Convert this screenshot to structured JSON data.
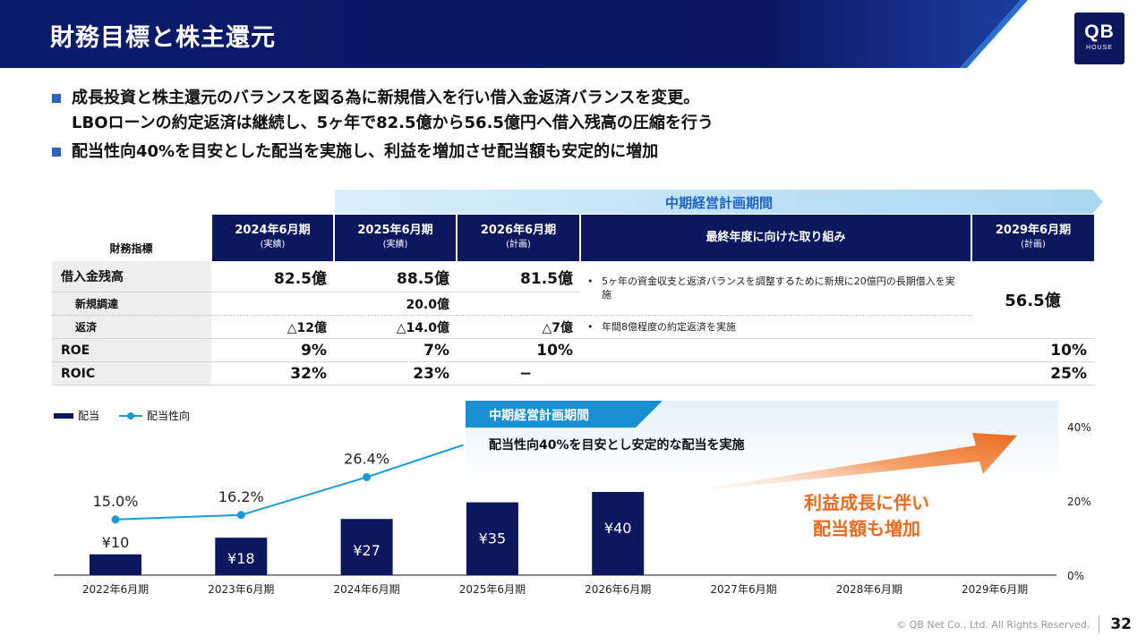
{
  "header": {
    "title": "財務目標と株主還元",
    "logo_main": "QB",
    "logo_sub": "HOUSE"
  },
  "bullets": [
    "成長投資と株主還元のバランスを図る為に新規借入を行い借入金返済バランスを変更。\nLBOローンの約定返済は継続し、5ヶ年で82.5億から56.5億円へ借入残高の圧縮を行う",
    "配当性向40%を目安とした配当を実施し、利益を増加させ配当額も安定的に増加"
  ],
  "table": {
    "period_banner": "中期経営計画期間",
    "label_header": "財務指標",
    "col_headers": [
      {
        "title": "2024年6月期",
        "sub": "(実績)"
      },
      {
        "title": "2025年6月期",
        "sub": "(実績)"
      },
      {
        "title": "2026年6月期",
        "sub": "(計画)"
      },
      {
        "title": "最終年度に向けた取り組み",
        "sub": ""
      },
      {
        "title": "2029年6月期",
        "sub": "(計画)"
      }
    ],
    "rows": {
      "borrow": {
        "name": "借入金残高",
        "v2024": "82.5億",
        "v2025": "88.5億",
        "v2026": "81.5億"
      },
      "new_borrow": {
        "name": "新規調達",
        "v2024": "",
        "v2025": "20.0億",
        "v2026": ""
      },
      "repay": {
        "name": "返済",
        "v2024": "△12億",
        "v2025": "△14.0億",
        "v2026": "△7億"
      },
      "roe": {
        "name": "ROE",
        "v2024": "9%",
        "v2025": "7%",
        "v2026": "10%",
        "v2029": "10%"
      },
      "roic": {
        "name": "ROIC",
        "v2024": "32%",
        "v2025": "23%",
        "v2026": "−",
        "v2029": "25%"
      }
    },
    "notes": [
      "5ヶ年の資金収支と返済バランスを調整するために新規に20億円の長期借入を実施",
      "年間8億程度の約定返済を実施"
    ],
    "borrow_2029": "56.5億"
  },
  "legend": {
    "bar": "配当",
    "line": "配当性向"
  },
  "mid_plan": {
    "tag": "中期経営計画期間",
    "text": "配当性向40%を目安とし安定的な配当を実施"
  },
  "growth_note": {
    "line1": "利益成長に伴い",
    "line2": "配当額も増加"
  },
  "footer": {
    "copyright": "© QB Net Co., Ltd. All Rights Reserved.",
    "page": "32"
  },
  "colors": {
    "navy": "#0b1860",
    "blue_accent": "#1e63c7",
    "line": "#1a9ad6",
    "orange": "#ec6a1e"
  },
  "chart_data": {
    "type": "bar",
    "categories": [
      "2022年6月期",
      "2023年6月期",
      "2024年6月期",
      "2025年6月期",
      "2026年6月期",
      "2027年6月期",
      "2028年6月期",
      "2029年6月期"
    ],
    "series": [
      {
        "name": "配当",
        "type": "bar",
        "values": [
          10,
          18,
          27,
          35,
          40,
          null,
          null,
          null
        ],
        "labels": [
          "¥10",
          "¥18",
          "¥27",
          "¥35",
          "¥40",
          "",
          "",
          ""
        ]
      },
      {
        "name": "配当性向",
        "type": "line",
        "axis": "right",
        "values": [
          15.0,
          16.2,
          26.4,
          null,
          null,
          null,
          null,
          null
        ],
        "labels": [
          "15.0%",
          "16.2%",
          "26.4%",
          "",
          "",
          "",
          "",
          ""
        ]
      }
    ],
    "right_axis": {
      "ticks": [
        "0%",
        "20%",
        "40%"
      ],
      "range": [
        0,
        40
      ]
    },
    "left_axis": {
      "range": [
        0,
        45
      ]
    }
  }
}
